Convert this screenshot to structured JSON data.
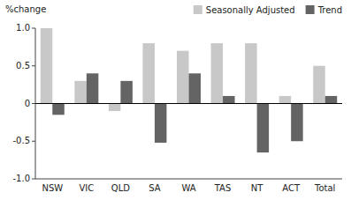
{
  "chart_data": {
    "type": "bar",
    "ylabel": "%change",
    "categories": [
      "NSW",
      "VIC",
      "QLD",
      "SA",
      "WA",
      "TAS",
      "NT",
      "ACT",
      "Total"
    ],
    "series": [
      {
        "name": "Seasonally Adjusted",
        "color": "#c8c8c8",
        "values": [
          1.0,
          0.3,
          -0.1,
          0.8,
          0.7,
          0.8,
          0.8,
          0.1,
          0.5
        ]
      },
      {
        "name": "Trend",
        "color": "#646464",
        "values": [
          -0.15,
          0.4,
          0.3,
          -0.52,
          0.4,
          0.1,
          -0.65,
          -0.5,
          0.1
        ]
      }
    ],
    "ylim": [
      -1.0,
      1.0
    ],
    "yticks": [
      {
        "value": -1.0,
        "label": "-1.0"
      },
      -0.5,
      0,
      0.5,
      {
        "value": 1.0,
        "label": "1.0"
      }
    ],
    "grid": false,
    "legend": "upper right"
  }
}
